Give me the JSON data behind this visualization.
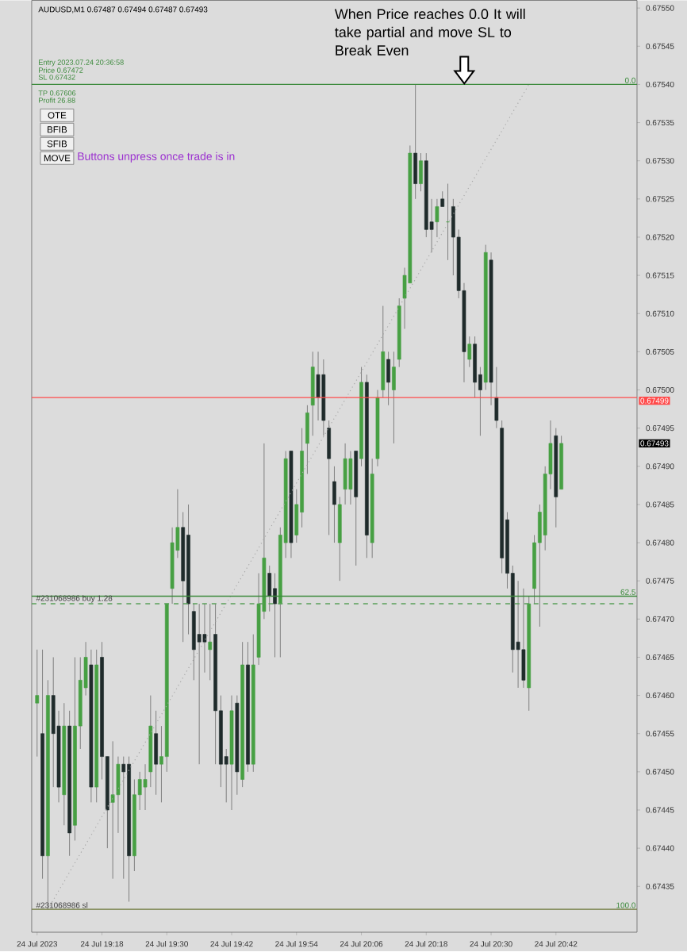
{
  "chart_data": {
    "type": "candlestick",
    "title": "AUDUSD,M1  0.67487 0.67494 0.67487 0.67493",
    "x": [
      "2023-07-24T19:06",
      "2023-07-24T19:07",
      "2023-07-24T19:08",
      "2023-07-24T19:09",
      "2023-07-24T19:10",
      "2023-07-24T19:11",
      "2023-07-24T19:12",
      "2023-07-24T19:13",
      "2023-07-24T19:14",
      "2023-07-24T19:15",
      "2023-07-24T19:16",
      "2023-07-24T19:17",
      "2023-07-24T19:18",
      "2023-07-24T19:19",
      "2023-07-24T19:20",
      "2023-07-24T19:21",
      "2023-07-24T19:22",
      "2023-07-24T19:23",
      "2023-07-24T19:24",
      "2023-07-24T19:25",
      "2023-07-24T19:26",
      "2023-07-24T19:27",
      "2023-07-24T19:28",
      "2023-07-24T19:29",
      "2023-07-24T19:30",
      "2023-07-24T19:31",
      "2023-07-24T19:32",
      "2023-07-24T19:33",
      "2023-07-24T19:34",
      "2023-07-24T19:35",
      "2023-07-24T19:36",
      "2023-07-24T19:37",
      "2023-07-24T19:38",
      "2023-07-24T19:39",
      "2023-07-24T19:40",
      "2023-07-24T19:41",
      "2023-07-24T19:42",
      "2023-07-24T19:43",
      "2023-07-24T19:44",
      "2023-07-24T19:45",
      "2023-07-24T19:46",
      "2023-07-24T19:47",
      "2023-07-24T19:48",
      "2023-07-24T19:49",
      "2023-07-24T19:50",
      "2023-07-24T19:51",
      "2023-07-24T19:52",
      "2023-07-24T19:53",
      "2023-07-24T19:54",
      "2023-07-24T19:55",
      "2023-07-24T19:56",
      "2023-07-24T19:57",
      "2023-07-24T19:58",
      "2023-07-24T19:59",
      "2023-07-24T20:00",
      "2023-07-24T20:01",
      "2023-07-24T20:02",
      "2023-07-24T20:03",
      "2023-07-24T20:04",
      "2023-07-24T20:05",
      "2023-07-24T20:06",
      "2023-07-24T20:07",
      "2023-07-24T20:08",
      "2023-07-24T20:09",
      "2023-07-24T20:10",
      "2023-07-24T20:11",
      "2023-07-24T20:12",
      "2023-07-24T20:13",
      "2023-07-24T20:14",
      "2023-07-24T20:15",
      "2023-07-24T20:16",
      "2023-07-24T20:17",
      "2023-07-24T20:18",
      "2023-07-24T20:19",
      "2023-07-24T20:20",
      "2023-07-24T20:21",
      "2023-07-24T20:22",
      "2023-07-24T20:23",
      "2023-07-24T20:24",
      "2023-07-24T20:25",
      "2023-07-24T20:26",
      "2023-07-24T20:27",
      "2023-07-24T20:28",
      "2023-07-24T20:29",
      "2023-07-24T20:30",
      "2023-07-24T20:31",
      "2023-07-24T20:32",
      "2023-07-24T20:33",
      "2023-07-24T20:34",
      "2023-07-24T20:35",
      "2023-07-24T20:36",
      "2023-07-24T20:37",
      "2023-07-24T20:38",
      "2023-07-24T20:39",
      "2023-07-24T20:40",
      "2023-07-24T20:41",
      "2023-07-24T20:42",
      "2023-07-24T20:43"
    ],
    "ohlc": [
      [
        0.67459,
        0.67466,
        0.67452,
        0.6746
      ],
      [
        0.67455,
        0.67466,
        0.67436,
        0.67439
      ],
      [
        0.67439,
        0.67462,
        0.67432,
        0.6746
      ],
      [
        0.6746,
        0.67465,
        0.67448,
        0.67455
      ],
      [
        0.67456,
        0.67458,
        0.67446,
        0.67448
      ],
      [
        0.67447,
        0.67459,
        0.67443,
        0.67456
      ],
      [
        0.67456,
        0.67458,
        0.67439,
        0.67442
      ],
      [
        0.67443,
        0.67465,
        0.67441,
        0.67456
      ],
      [
        0.67456,
        0.67465,
        0.67453,
        0.67462
      ],
      [
        0.67461,
        0.67467,
        0.6746,
        0.67465
      ],
      [
        0.67464,
        0.67466,
        0.67446,
        0.67448
      ],
      [
        0.67448,
        0.67466,
        0.67446,
        0.67464
      ],
      [
        0.67465,
        0.67467,
        0.67449,
        0.67452
      ],
      [
        0.67452,
        0.67452,
        0.6744,
        0.67445
      ],
      [
        0.67446,
        0.67454,
        0.67436,
        0.67447
      ],
      [
        0.67447,
        0.67452,
        0.67442,
        0.67451
      ],
      [
        0.67451,
        0.67452,
        0.67436,
        0.6745
      ],
      [
        0.67451,
        0.67452,
        0.67433,
        0.67439
      ],
      [
        0.67439,
        0.67449,
        0.67437,
        0.67447
      ],
      [
        0.67447,
        0.6745,
        0.67445,
        0.67449
      ],
      [
        0.67448,
        0.67451,
        0.67445,
        0.67449
      ],
      [
        0.6745,
        0.6746,
        0.67448,
        0.67456
      ],
      [
        0.67455,
        0.67458,
        0.67447,
        0.67451
      ],
      [
        0.67451,
        0.67456,
        0.67446,
        0.67452
      ],
      [
        0.67452,
        0.67472,
        0.6745,
        0.67472
      ],
      [
        0.67474,
        0.67482,
        0.67472,
        0.6748
      ],
      [
        0.67479,
        0.67487,
        0.67478,
        0.67482
      ],
      [
        0.67482,
        0.67484,
        0.67467,
        0.67475
      ],
      [
        0.67481,
        0.67485,
        0.67468,
        0.67472
      ],
      [
        0.67471,
        0.67472,
        0.67462,
        0.67466
      ],
      [
        0.67468,
        0.67472,
        0.67451,
        0.67467
      ],
      [
        0.67468,
        0.67472,
        0.67463,
        0.67467
      ],
      [
        0.67466,
        0.67472,
        0.67462,
        0.67467
      ],
      [
        0.67468,
        0.67472,
        0.67451,
        0.67458
      ],
      [
        0.67458,
        0.6746,
        0.67448,
        0.67451
      ],
      [
        0.67452,
        0.67453,
        0.67446,
        0.67451
      ],
      [
        0.67451,
        0.6746,
        0.67445,
        0.67458
      ],
      [
        0.67459,
        0.6746,
        0.67447,
        0.6745
      ],
      [
        0.67449,
        0.67467,
        0.67448,
        0.67464
      ],
      [
        0.67464,
        0.67467,
        0.6745,
        0.67451
      ],
      [
        0.67451,
        0.67468,
        0.6745,
        0.67464
      ],
      [
        0.67465,
        0.67476,
        0.67464,
        0.67472
      ],
      [
        0.67471,
        0.67493,
        0.6747,
        0.67478
      ],
      [
        0.67476,
        0.67477,
        0.67471,
        0.67473
      ],
      [
        0.67474,
        0.67476,
        0.67465,
        0.67472
      ],
      [
        0.67472,
        0.67482,
        0.67465,
        0.67481
      ],
      [
        0.6748,
        0.67492,
        0.67478,
        0.67491
      ],
      [
        0.67492,
        0.67492,
        0.67478,
        0.6748
      ],
      [
        0.67481,
        0.67487,
        0.6748,
        0.67485
      ],
      [
        0.67484,
        0.67495,
        0.67482,
        0.67492
      ],
      [
        0.67493,
        0.67498,
        0.67489,
        0.67497
      ],
      [
        0.67498,
        0.67505,
        0.67494,
        0.67503
      ],
      [
        0.67502,
        0.67505,
        0.67496,
        0.67499
      ],
      [
        0.67502,
        0.67504,
        0.67494,
        0.67496
      ],
      [
        0.67495,
        0.67496,
        0.67481,
        0.67491
      ],
      [
        0.67488,
        0.6749,
        0.6748,
        0.67485
      ],
      [
        0.6748,
        0.67486,
        0.67475,
        0.67485
      ],
      [
        0.67487,
        0.67493,
        0.67485,
        0.67491
      ],
      [
        0.67487,
        0.67492,
        0.67485,
        0.67491
      ],
      [
        0.67492,
        0.67492,
        0.67477,
        0.67486
      ],
      [
        0.67491,
        0.67503,
        0.6749,
        0.67501
      ],
      [
        0.67501,
        0.67502,
        0.67478,
        0.67481
      ],
      [
        0.6748,
        0.67491,
        0.67478,
        0.67489
      ],
      [
        0.67491,
        0.675,
        0.6749,
        0.67499
      ],
      [
        0.675,
        0.67511,
        0.67499,
        0.67505
      ],
      [
        0.67504,
        0.67505,
        0.67498,
        0.67501
      ],
      [
        0.675,
        0.67505,
        0.67493,
        0.67503
      ],
      [
        0.67504,
        0.67512,
        0.67503,
        0.67511
      ],
      [
        0.67512,
        0.67516,
        0.67508,
        0.67515
      ],
      [
        0.67514,
        0.67532,
        0.67514,
        0.67531
      ],
      [
        0.67531,
        0.6754,
        0.67525,
        0.67527
      ],
      [
        0.67527,
        0.67531,
        0.67526,
        0.6753
      ],
      [
        0.6753,
        0.67531,
        0.6752,
        0.67521
      ],
      [
        0.67522,
        0.67525,
        0.67518,
        0.67521
      ],
      [
        0.67522,
        0.67525,
        0.6752,
        0.67524
      ],
      [
        0.67525,
        0.67526,
        0.67524,
        0.67524
      ],
      [
        0.67522,
        0.67527,
        0.67517,
        0.67522
      ],
      [
        0.67524,
        0.67525,
        0.67515,
        0.6752
      ],
      [
        0.6752,
        0.67521,
        0.67512,
        0.67513
      ],
      [
        0.67513,
        0.67514,
        0.67501,
        0.67505
      ],
      [
        0.67504,
        0.67507,
        0.67503,
        0.67506
      ],
      [
        0.67506,
        0.67507,
        0.67499,
        0.67501
      ],
      [
        0.67502,
        0.67503,
        0.67494,
        0.675
      ],
      [
        0.67501,
        0.67519,
        0.675,
        0.67518
      ],
      [
        0.67517,
        0.67518,
        0.67498,
        0.67501
      ],
      [
        0.67499,
        0.67503,
        0.67495,
        0.67496
      ],
      [
        0.67495,
        0.67496,
        0.67476,
        0.67478
      ],
      [
        0.67483,
        0.67484,
        0.67474,
        0.67476
      ],
      [
        0.67476,
        0.67477,
        0.67463,
        0.67466
      ],
      [
        0.67467,
        0.67475,
        0.67461,
        0.67466
      ],
      [
        0.67466,
        0.67474,
        0.67461,
        0.67462
      ],
      [
        0.67461,
        0.67473,
        0.67458,
        0.67472
      ],
      [
        0.67474,
        0.67481,
        0.67472,
        0.6748
      ],
      [
        0.6748,
        0.67485,
        0.67469,
        0.67484
      ],
      [
        0.67481,
        0.6749,
        0.67479,
        0.67489
      ],
      [
        0.67489,
        0.67496,
        0.67487,
        0.67493
      ],
      [
        0.67494,
        0.67495,
        0.67482,
        0.67486
      ],
      [
        0.67487,
        0.67494,
        0.67487,
        0.67493
      ]
    ],
    "series": [
      {
        "type": "line",
        "x": [
          "2023-07-24T19:08",
          "2023-07-24T20:37"
        ],
        "values": [
          0.67432,
          0.6754
        ],
        "color": "#a8a8a8",
        "line_style": "dotted"
      }
    ],
    "xlim": [
      "2023-07-24T19:05",
      "2023-07-24T20:57"
    ],
    "ylim": [
      0.67429,
      0.67551
    ],
    "xticks": [
      {
        "value": "2023-07-24T19:06",
        "label": "24 Jul 2023"
      },
      {
        "value": "2023-07-24T19:18",
        "label": "24 Jul 19:18"
      },
      {
        "value": "2023-07-24T19:30",
        "label": "24 Jul 19:30"
      },
      {
        "value": "2023-07-24T19:42",
        "label": "24 Jul 19:42"
      },
      {
        "value": "2023-07-24T19:54",
        "label": "24 Jul 19:54"
      },
      {
        "value": "2023-07-24T20:06",
        "label": "24 Jul 20:06"
      },
      {
        "value": "2023-07-24T20:18",
        "label": "24 Jul 20:18"
      },
      {
        "value": "2023-07-24T20:30",
        "label": "24 Jul 20:30"
      },
      {
        "value": "2023-07-24T20:42",
        "label": "24 Jul 20:42"
      }
    ],
    "yticks": [
      0.67435,
      {
        "value": 0.6744,
        "label": "0.67440"
      },
      0.67445,
      {
        "value": 0.6745,
        "label": "0.67450"
      },
      0.67455,
      {
        "value": 0.6746,
        "label": "0.67460"
      },
      0.67465,
      {
        "value": 0.6747,
        "label": "0.67470"
      },
      0.67475,
      {
        "value": 0.6748,
        "label": "0.67480"
      },
      0.67485,
      {
        "value": 0.6749,
        "label": "0.67490"
      },
      0.67495,
      {
        "value": 0.675,
        "label": "0.67500"
      },
      0.67505,
      {
        "value": 0.6751,
        "label": "0.67510"
      },
      0.67515,
      {
        "value": 0.6752,
        "label": "0.67520"
      },
      0.67525,
      {
        "value": 0.6753,
        "label": "0.67530"
      },
      0.67535,
      {
        "value": 0.6754,
        "label": "0.67540"
      },
      0.67545,
      {
        "value": 0.6755,
        "label": "0.67550"
      }
    ],
    "ref_lines": [
      {
        "axis": "y",
        "value": 0.6754,
        "color": "#3c8a3c"
      },
      {
        "axis": "y",
        "value": 0.67499,
        "label": "0.67499",
        "color": "#ff4a4a"
      },
      {
        "axis": "y",
        "value": 0.67473,
        "color": "#3c8a3c"
      },
      {
        "axis": "y",
        "value": 0.67472,
        "label": "#231068986 buy 1.28",
        "color": "#5aa05a",
        "line_style": "dashed"
      },
      {
        "axis": "y",
        "value": 0.67432,
        "label": "#231068986 sl",
        "color": "#6f7a3c"
      }
    ],
    "annotations": [
      "Entry 2023.07.24 20:36:58",
      "Price 0.67472",
      "SL 0.67432",
      "TP 0.67606",
      "Profit 26.88",
      "OTE",
      "BFIB",
      "SFIB",
      "MOVE",
      "Buttons unpress once trade is in",
      "When Price reaches 0.0 It will take partial and move SL to Break Even",
      "0.67493",
      {
        "text": "0.0",
        "y": 0.6754
      },
      {
        "text": "62.5",
        "y": 0.67473
      },
      {
        "text": "100.0",
        "y": 0.67432
      }
    ]
  }
}
